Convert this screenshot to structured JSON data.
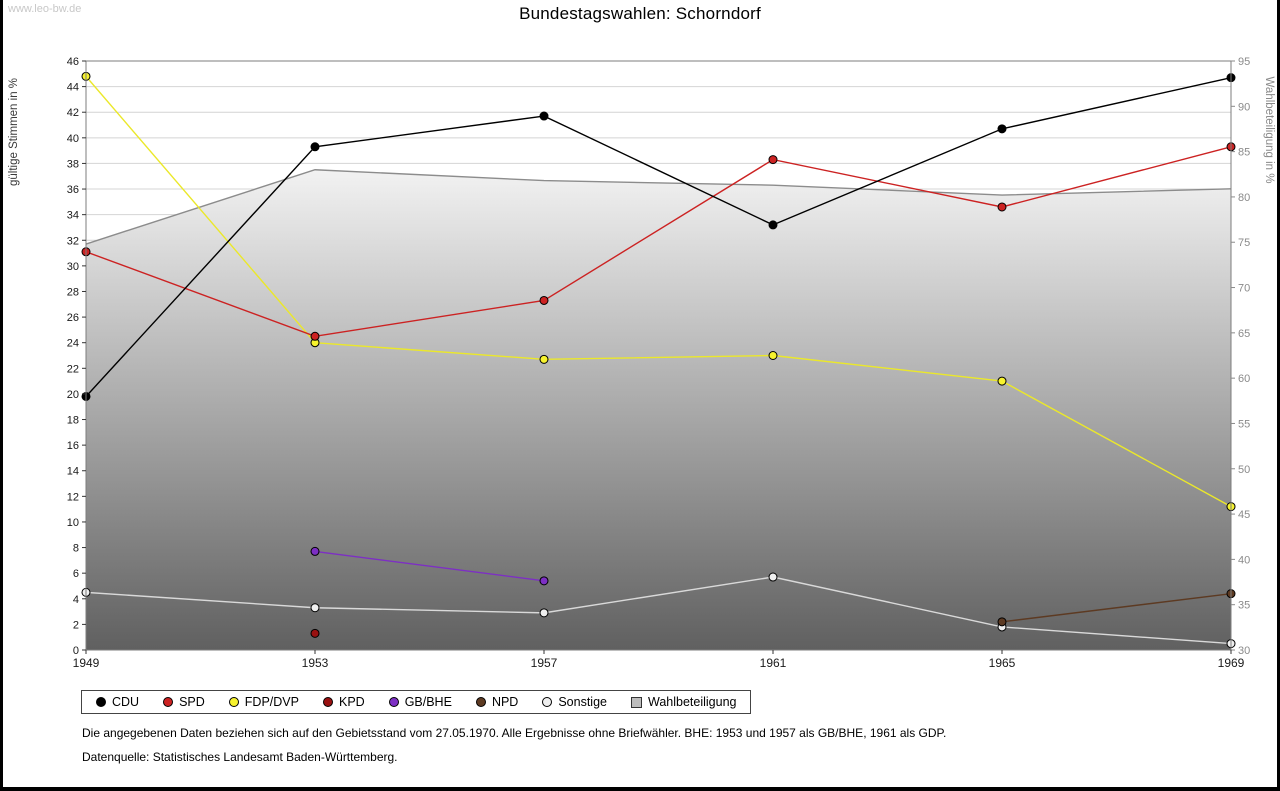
{
  "page": {
    "watermark": "www.leo-bw.de",
    "title": "Bundestagswahlen: Schorndorf",
    "footnotes": [
      "Die angegebenen Daten beziehen sich auf den Gebietsstand vom 27.05.1970. Alle Ergebnisse ohne Briefwähler. BHE: 1953 und 1957 als GB/BHE, 1961 als GDP.",
      "Datenquelle: Statistisches Landesamt Baden-Württemberg."
    ]
  },
  "chart_data": {
    "type": "line",
    "title": "Bundestagswahlen: Schorndorf",
    "x_years": [
      1949,
      1953,
      1957,
      1961,
      1965,
      1969
    ],
    "left_axis": {
      "label": "gültige Stimmen in %",
      "min": 0,
      "max": 46,
      "tick_step": 2
    },
    "right_axis": {
      "label": "Wahlbeteiligung in %",
      "min": 30,
      "max": 95,
      "tick_step": 5
    },
    "grid": "horizontal",
    "legend_position": "bottom",
    "series": [
      {
        "name": "CDU",
        "axis": "left",
        "color": "#000000",
        "marker": "circle",
        "points": [
          [
            1949,
            19.8
          ],
          [
            1953,
            39.3
          ],
          [
            1957,
            41.7
          ],
          [
            1961,
            33.2
          ],
          [
            1965,
            40.7
          ],
          [
            1969,
            44.7
          ]
        ]
      },
      {
        "name": "SPD",
        "axis": "left",
        "color": "#cc2222",
        "marker": "circle",
        "points": [
          [
            1949,
            31.1
          ],
          [
            1953,
            24.5
          ],
          [
            1957,
            27.3
          ],
          [
            1961,
            38.3
          ],
          [
            1965,
            34.6
          ],
          [
            1969,
            39.3
          ]
        ]
      },
      {
        "name": "FDP/DVP",
        "axis": "left",
        "color": "#ebe82a",
        "marker": "circle",
        "marker_fill": "#f7f32e",
        "points": [
          [
            1949,
            44.8
          ],
          [
            1953,
            24.0
          ],
          [
            1957,
            22.7
          ],
          [
            1961,
            23.0
          ],
          [
            1965,
            21.0
          ],
          [
            1969,
            11.2
          ]
        ]
      },
      {
        "name": "KPD",
        "axis": "left",
        "color": "#991111",
        "marker": "circle",
        "points": [
          [
            1953,
            1.3
          ]
        ]
      },
      {
        "name": "GB/BHE",
        "axis": "left",
        "color": "#7d2fc4",
        "marker": "circle",
        "points": [
          [
            1953,
            7.7
          ],
          [
            1957,
            5.4
          ]
        ]
      },
      {
        "name": "NPD",
        "axis": "left",
        "color": "#5d3a22",
        "marker": "circle",
        "points": [
          [
            1965,
            2.2
          ],
          [
            1969,
            4.4
          ]
        ]
      },
      {
        "name": "Sonstige",
        "axis": "left",
        "color": "#d9d9d9",
        "marker": "circle",
        "marker_fill": "#efefef",
        "points": [
          [
            1949,
            4.5
          ],
          [
            1953,
            3.3
          ],
          [
            1957,
            2.9
          ],
          [
            1961,
            5.7
          ],
          [
            1965,
            1.8
          ],
          [
            1969,
            0.5
          ]
        ]
      },
      {
        "name": "Wahlbeteiligung",
        "axis": "right",
        "color": "#8c8c8c",
        "marker": "none",
        "legend_marker": "square",
        "legend_fill": "#bdbdbd",
        "area": true,
        "area_gradient": [
          "#f2f2f2",
          "#606060"
        ],
        "points": [
          [
            1949,
            74.8
          ],
          [
            1953,
            83.0
          ],
          [
            1957,
            81.8
          ],
          [
            1961,
            81.3
          ],
          [
            1965,
            80.2
          ],
          [
            1969,
            80.9
          ]
        ]
      }
    ]
  }
}
